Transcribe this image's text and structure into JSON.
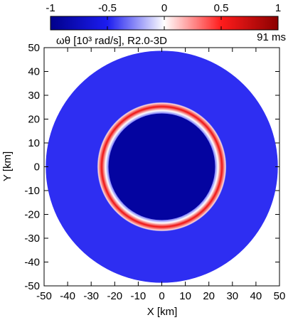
{
  "chart_data": {
    "type": "heatmap",
    "title": "ωθ [10³ rad/s], R2.0-3D",
    "time_label": "91 ms",
    "xlabel": "X [km]",
    "ylabel": "Y [km]",
    "xlim": [
      -50,
      50
    ],
    "ylim": [
      -50,
      50
    ],
    "x_ticks": [
      "-50",
      "-40",
      "-30",
      "-20",
      "-10",
      "0",
      "10",
      "20",
      "30",
      "40",
      "50"
    ],
    "y_ticks": [
      "-50",
      "-40",
      "-30",
      "-20",
      "-10",
      "0",
      "10",
      "20",
      "30",
      "40",
      "50"
    ],
    "x_tick_values": [
      -50,
      -40,
      -30,
      -20,
      -10,
      0,
      10,
      20,
      30,
      40,
      50
    ],
    "y_tick_values": [
      -50,
      -40,
      -30,
      -20,
      -10,
      0,
      10,
      20,
      30,
      40,
      50
    ],
    "colorbar": {
      "range": [
        -1,
        1
      ],
      "ticks": [
        "-1",
        "-0.5",
        "0",
        "0.5",
        "1"
      ],
      "tick_values": [
        -1,
        -0.5,
        0,
        0.5,
        1
      ],
      "colors": [
        "#00008b",
        "#1c1cf0",
        "#ffffff",
        "#ff1c1c",
        "#8b0000"
      ]
    },
    "field": {
      "outer_radius_km": 49,
      "outer_disk_value": -0.62,
      "inner_disk_radius_km": 22.5,
      "inner_disk_value": -1.0,
      "ring_radius_km": 24.5,
      "ring_peak_value": 0.75
    }
  }
}
